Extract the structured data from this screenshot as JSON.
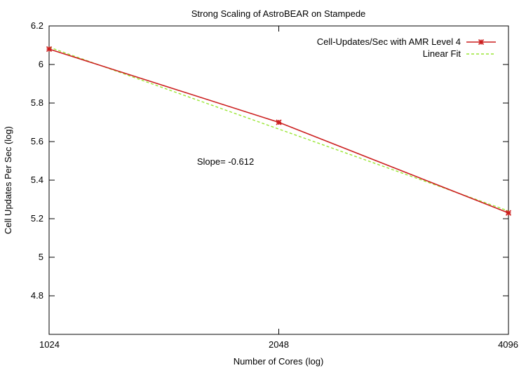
{
  "chart_data": {
    "type": "line",
    "title": "Strong Scaling of AstroBEAR on Stampede",
    "xlabel": "Number of Cores (log)",
    "ylabel": "Cell Updates Per Sec (log)",
    "x_scale": "log2",
    "x_ticks": [
      1024,
      2048,
      4096
    ],
    "xlim": [
      1024,
      4096
    ],
    "ylim": [
      4.6,
      6.2
    ],
    "y_ticks": [
      4.8,
      5,
      5.2,
      5.4,
      5.6,
      5.8,
      6,
      6.2
    ],
    "y_tick_labels": [
      "4.8",
      "5",
      "5.2",
      "5.4",
      "5.6",
      "5.8",
      "6",
      "6.2"
    ],
    "grid": false,
    "legend_position": "top-right",
    "series": [
      {
        "name": "Cell-Updates/Sec  with AMR Level 4",
        "style": "line-with-star-markers",
        "color": "#cc1f1f",
        "x": [
          1024,
          2048,
          4096
        ],
        "y": [
          6.08,
          5.7,
          5.23
        ]
      },
      {
        "name": "Linear Fit",
        "style": "dashed",
        "color": "#99e633",
        "x": [
          1024,
          4096
        ],
        "y": [
          6.09,
          5.24
        ]
      }
    ],
    "annotations": [
      {
        "text": "Slope= -0.612",
        "x": 1600,
        "y": 5.48
      }
    ]
  }
}
